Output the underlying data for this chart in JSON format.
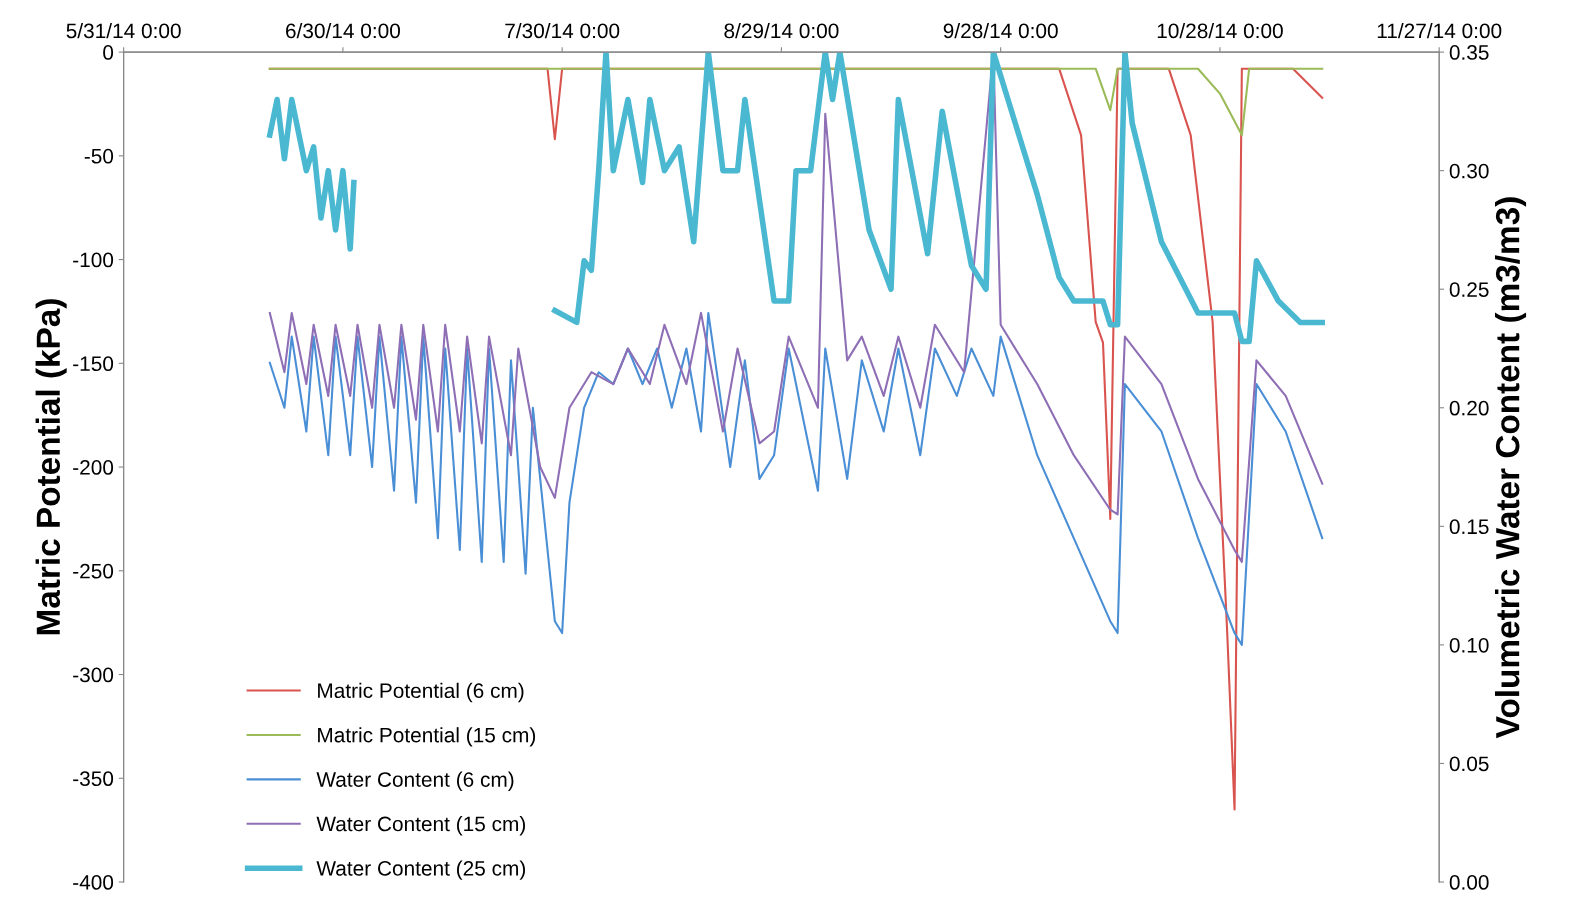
{
  "chart_data": {
    "type": "line",
    "ylabel": "Matric Potential (kPa)",
    "y2label": "Volumetric Water Content (m3/m3)",
    "xlim": [
      "2014-05-31",
      "2014-11-27"
    ],
    "xticks": [
      {
        "value": "2014-05-31",
        "label": "5/31/14 0:00"
      },
      {
        "value": "2014-06-30",
        "label": "6/30/14 0:00"
      },
      {
        "value": "2014-07-30",
        "label": "7/30/14 0:00"
      },
      {
        "value": "2014-08-29",
        "label": "8/29/14 0:00"
      },
      {
        "value": "2014-09-28",
        "label": "9/28/14 0:00"
      },
      {
        "value": "2014-10-28",
        "label": "10/28/14 0:00"
      },
      {
        "value": "2014-11-27",
        "label": "11/27/14 0:00"
      }
    ],
    "ylim": [
      -400,
      0
    ],
    "yticks": [
      -400,
      -350,
      -300,
      -250,
      -200,
      -150,
      -100,
      -50,
      0
    ],
    "y2lim": [
      0,
      0.35
    ],
    "y2ticks": [
      {
        "value": 0,
        "label": "0.00"
      },
      {
        "value": 0.05,
        "label": "0.05"
      },
      {
        "value": 0.1,
        "label": "0.10"
      },
      {
        "value": 0.15,
        "label": "0.15"
      },
      {
        "value": 0.2,
        "label": "0.20"
      },
      {
        "value": 0.25,
        "label": "0.25"
      },
      {
        "value": 0.3,
        "label": "0.30"
      },
      {
        "value": 0.35,
        "label": "0.35"
      }
    ],
    "grid": false,
    "legend": "bottom left",
    "marker": "none",
    "line_style": "solid",
    "series": [
      {
        "name": "Matric Potential (6 cm)",
        "color": "#d9534f",
        "x": [
          "2014-06-20",
          "2014-07-28",
          "2014-07-29",
          "2014-07-30",
          "2014-10-06",
          "2014-10-09",
          "2014-10-11",
          "2014-10-12",
          "2014-10-13",
          "2014-10-14",
          "2014-10-21",
          "2014-10-24",
          "2014-10-27",
          "2014-10-29",
          "2014-10-30",
          "2014-10-31",
          "2014-11-07",
          "2014-11-11"
        ],
        "values": [
          -8,
          -8,
          -42,
          -8,
          -8,
          -40,
          -130,
          -140,
          -225,
          -8,
          -8,
          -40,
          -130,
          -280,
          -365,
          -8,
          -8,
          -22
        ]
      },
      {
        "name": "Matric Potential (15 cm)",
        "color": "#9bbb59",
        "x": [
          "2014-06-20",
          "2014-10-11",
          "2014-10-13",
          "2014-10-14",
          "2014-10-25",
          "2014-10-28",
          "2014-10-31",
          "2014-11-01",
          "2014-11-11"
        ],
        "values": [
          -8,
          -8,
          -28,
          -8,
          -8,
          -20,
          -40,
          -8,
          -8
        ]
      },
      {
        "name": "Water Content (6 cm)",
        "color": "#4a8fd6",
        "axis": "y2",
        "x": [
          "2014-06-20",
          "2014-06-22",
          "2014-06-23",
          "2014-06-25",
          "2014-06-26",
          "2014-06-28",
          "2014-06-29",
          "2014-07-01",
          "2014-07-02",
          "2014-07-04",
          "2014-07-05",
          "2014-07-07",
          "2014-07-08",
          "2014-07-10",
          "2014-07-11",
          "2014-07-13",
          "2014-07-14",
          "2014-07-16",
          "2014-07-17",
          "2014-07-19",
          "2014-07-20",
          "2014-07-22",
          "2014-07-23",
          "2014-07-25",
          "2014-07-26",
          "2014-07-29",
          "2014-07-30",
          "2014-07-31",
          "2014-08-02",
          "2014-08-04",
          "2014-08-06",
          "2014-08-08",
          "2014-08-10",
          "2014-08-12",
          "2014-08-14",
          "2014-08-16",
          "2014-08-18",
          "2014-08-19",
          "2014-08-22",
          "2014-08-24",
          "2014-08-26",
          "2014-08-28",
          "2014-08-30",
          "2014-09-03",
          "2014-09-04",
          "2014-09-07",
          "2014-09-09",
          "2014-09-12",
          "2014-09-14",
          "2014-09-17",
          "2014-09-19",
          "2014-09-22",
          "2014-09-24",
          "2014-09-27",
          "2014-09-28",
          "2014-10-03",
          "2014-10-08",
          "2014-10-13",
          "2014-10-14",
          "2014-10-15",
          "2014-10-20",
          "2014-10-25",
          "2014-10-30",
          "2014-10-31",
          "2014-11-02",
          "2014-11-06",
          "2014-11-11"
        ],
        "values": [
          0.219,
          0.2,
          0.23,
          0.19,
          0.23,
          0.18,
          0.23,
          0.18,
          0.23,
          0.175,
          0.23,
          0.165,
          0.23,
          0.16,
          0.23,
          0.145,
          0.225,
          0.14,
          0.225,
          0.135,
          0.225,
          0.135,
          0.22,
          0.13,
          0.2,
          0.11,
          0.105,
          0.16,
          0.2,
          0.215,
          0.21,
          0.225,
          0.21,
          0.225,
          0.2,
          0.225,
          0.19,
          0.24,
          0.175,
          0.22,
          0.17,
          0.18,
          0.225,
          0.165,
          0.225,
          0.17,
          0.22,
          0.19,
          0.225,
          0.18,
          0.225,
          0.205,
          0.225,
          0.205,
          0.23,
          0.18,
          0.145,
          0.11,
          0.105,
          0.21,
          0.19,
          0.145,
          0.105,
          0.1,
          0.21,
          0.19,
          0.145
        ]
      },
      {
        "name": "Water Content (15 cm)",
        "color": "#8e6fb5",
        "axis": "y2",
        "x": [
          "2014-06-20",
          "2014-06-22",
          "2014-06-23",
          "2014-06-25",
          "2014-06-26",
          "2014-06-28",
          "2014-06-29",
          "2014-07-01",
          "2014-07-02",
          "2014-07-04",
          "2014-07-05",
          "2014-07-07",
          "2014-07-08",
          "2014-07-10",
          "2014-07-11",
          "2014-07-13",
          "2014-07-14",
          "2014-07-16",
          "2014-07-17",
          "2014-07-19",
          "2014-07-20",
          "2014-07-23",
          "2014-07-24",
          "2014-07-27",
          "2014-07-29",
          "2014-07-31",
          "2014-08-03",
          "2014-08-06",
          "2014-08-08",
          "2014-08-11",
          "2014-08-13",
          "2014-08-16",
          "2014-08-18",
          "2014-08-21",
          "2014-08-23",
          "2014-08-26",
          "2014-08-28",
          "2014-08-30",
          "2014-09-03",
          "2014-09-04",
          "2014-09-07",
          "2014-09-09",
          "2014-09-12",
          "2014-09-14",
          "2014-09-17",
          "2014-09-19",
          "2014-09-23",
          "2014-09-27",
          "2014-09-28",
          "2014-10-03",
          "2014-10-08",
          "2014-10-13",
          "2014-10-14",
          "2014-10-15",
          "2014-10-20",
          "2014-10-25",
          "2014-10-30",
          "2014-10-31",
          "2014-11-02",
          "2014-11-06",
          "2014-11-11"
        ],
        "values": [
          0.24,
          0.215,
          0.24,
          0.21,
          0.235,
          0.205,
          0.235,
          0.205,
          0.235,
          0.2,
          0.235,
          0.2,
          0.235,
          0.195,
          0.235,
          0.19,
          0.235,
          0.19,
          0.23,
          0.185,
          0.23,
          0.18,
          0.225,
          0.175,
          0.162,
          0.2,
          0.215,
          0.21,
          0.225,
          0.21,
          0.235,
          0.21,
          0.24,
          0.19,
          0.225,
          0.185,
          0.19,
          0.23,
          0.2,
          0.324,
          0.22,
          0.23,
          0.205,
          0.23,
          0.2,
          0.235,
          0.215,
          0.35,
          0.235,
          0.21,
          0.18,
          0.157,
          0.155,
          0.23,
          0.21,
          0.17,
          0.14,
          0.135,
          0.22,
          0.205,
          0.168
        ]
      },
      {
        "name": "Water Content (25 cm)",
        "color": "#4bb8d2",
        "axis": "y2",
        "x": [
          "2014-06-20",
          "2014-06-21",
          "2014-06-22",
          "2014-06-23",
          "2014-06-25",
          "2014-06-26",
          "2014-06-27",
          "2014-06-28",
          "2014-06-29",
          "2014-06-30",
          "2014-07-01",
          "2014-07-01T12:00",
          "2014-07-15",
          "2014-07-29",
          "2014-08-01",
          "2014-08-02",
          "2014-08-03",
          "2014-08-04",
          "2014-08-05",
          "2014-08-06",
          "2014-08-08",
          "2014-08-10",
          "2014-08-11",
          "2014-08-13",
          "2014-08-15",
          "2014-08-17",
          "2014-08-19",
          "2014-08-21",
          "2014-08-23",
          "2014-08-24",
          "2014-08-28",
          "2014-08-30",
          "2014-08-31",
          "2014-09-02",
          "2014-09-04",
          "2014-09-05",
          "2014-09-06",
          "2014-09-10",
          "2014-09-13",
          "2014-09-14",
          "2014-09-18",
          "2014-09-20",
          "2014-09-24",
          "2014-09-26",
          "2014-09-27",
          "2014-09-29",
          "2014-10-03",
          "2014-10-06",
          "2014-10-08",
          "2014-10-12",
          "2014-10-13",
          "2014-10-14",
          "2014-10-15",
          "2014-10-16",
          "2014-10-20",
          "2014-10-25",
          "2014-10-30",
          "2014-10-31",
          "2014-11-01",
          "2014-11-02",
          "2014-11-05",
          "2014-11-08",
          "2014-11-11"
        ],
        "values": [
          0.315,
          0.33,
          0.305,
          0.33,
          0.3,
          0.31,
          0.28,
          0.3,
          0.275,
          0.3,
          0.267,
          0.295,
          null,
          0.241,
          0.236,
          0.262,
          0.258,
          0.3,
          0.35,
          0.3,
          0.33,
          0.295,
          0.33,
          0.3,
          0.31,
          0.27,
          0.35,
          0.3,
          0.3,
          0.33,
          0.245,
          0.245,
          0.3,
          0.3,
          0.35,
          0.33,
          0.35,
          0.275,
          0.25,
          0.33,
          0.265,
          0.325,
          0.26,
          0.25,
          0.35,
          0.33,
          0.29,
          0.255,
          0.245,
          0.245,
          0.235,
          0.235,
          0.35,
          0.32,
          0.27,
          0.24,
          0.24,
          0.228,
          0.228,
          0.262,
          0.245,
          0.236,
          0.236
        ]
      }
    ]
  }
}
